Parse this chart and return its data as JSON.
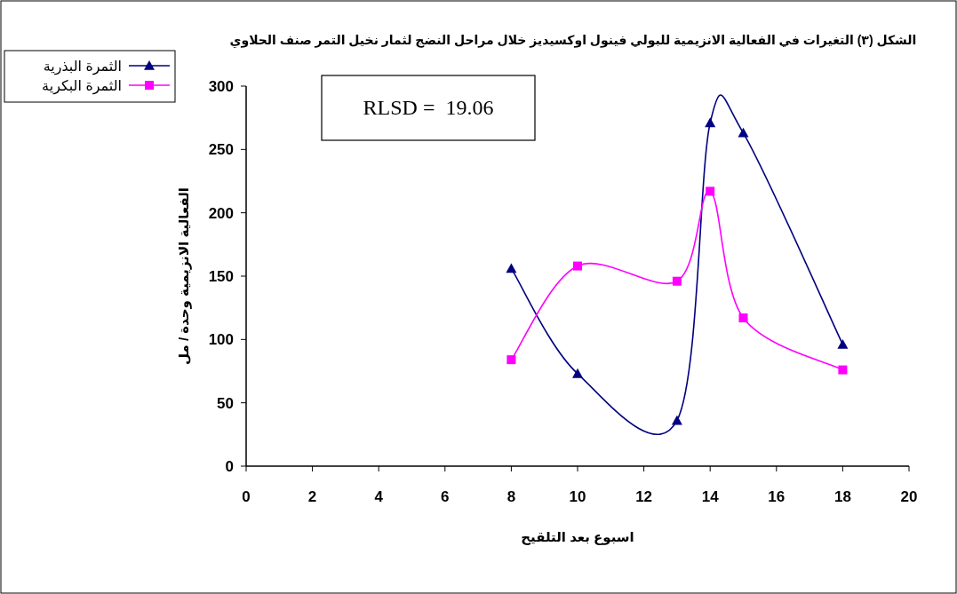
{
  "chart_data": {
    "type": "line",
    "title": "الشكل (٣) التغيرات في الفعالية الانزيمية للبولي فينول اوكسيديز خلال مراحل النضج لثمار نخيل التمر صنف الحلاوي",
    "xlabel": "اسبوع بعد التلقيح",
    "ylabel": "الفعالية الانزيمية  وحدة / مل",
    "annotations": [
      "RLSD =  19.06"
    ],
    "x": [
      8,
      10,
      13,
      14,
      15,
      18
    ],
    "series": [
      {
        "name": "الثمرة البذرية",
        "color": "#000080",
        "marker": "triangle",
        "values": [
          156,
          73,
          36,
          271,
          263,
          96
        ]
      },
      {
        "name": "الثمرة البكرية",
        "color": "#ff00ff",
        "marker": "square",
        "values": [
          84,
          158,
          146,
          217,
          117,
          76
        ]
      }
    ],
    "xlim": [
      0,
      20
    ],
    "xticks": [
      0,
      2,
      4,
      6,
      8,
      10,
      12,
      14,
      16,
      18,
      20
    ],
    "ylim": [
      0,
      300
    ],
    "yticks": [
      0,
      50,
      100,
      150,
      200,
      250,
      300
    ],
    "grid": false,
    "legend": "top left"
  }
}
